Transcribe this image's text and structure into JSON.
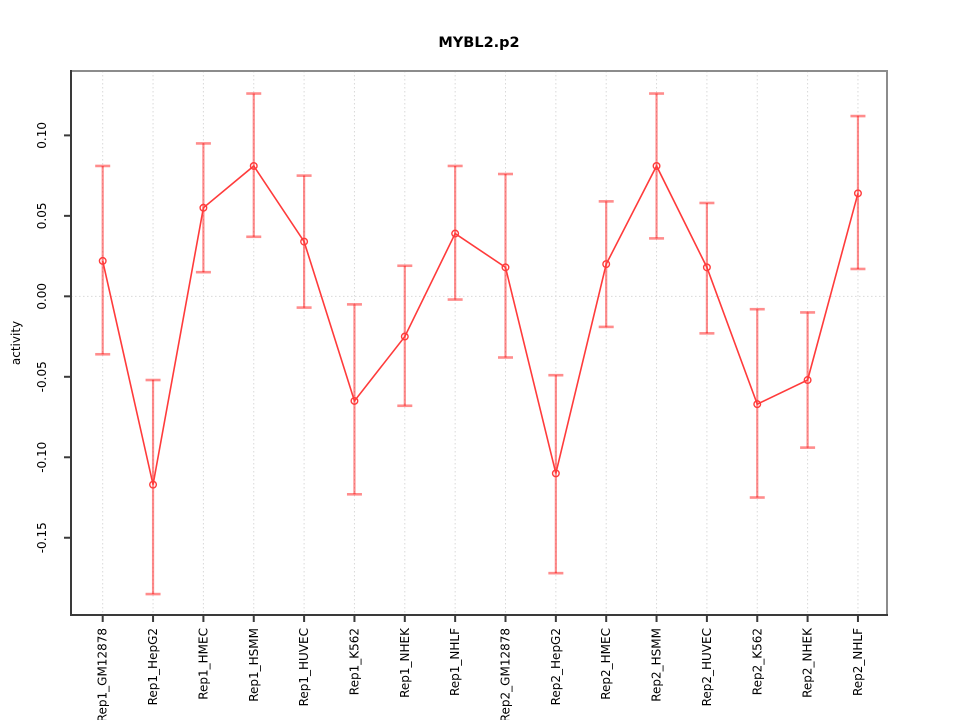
{
  "window": {
    "title": "MYBL2.p2"
  },
  "chart_data": {
    "type": "line",
    "title": "MYBL2.p2",
    "xlabel": "",
    "ylabel": "activity",
    "legend": "none",
    "grid": "vertical dotted gridline at each category; dotted horizontal line at y=0",
    "point_style": "open-circle",
    "error_bars": true,
    "categories": [
      "Rep1_GM12878",
      "Rep1_HepG2",
      "Rep1_HMEC",
      "Rep1_HSMM",
      "Rep1_HUVEC",
      "Rep1_K562",
      "Rep1_NHEK",
      "Rep1_NHLF",
      "Rep2_GM12878",
      "Rep2_HepG2",
      "Rep2_HMEC",
      "Rep2_HSMM",
      "Rep2_HUVEC",
      "Rep2_K562",
      "Rep2_NHEK",
      "Rep2_NHLF"
    ],
    "series": [
      {
        "name": "activity",
        "values": [
          0.022,
          -0.117,
          0.055,
          0.081,
          0.034,
          -0.065,
          -0.025,
          0.039,
          0.018,
          -0.11,
          0.02,
          0.081,
          0.018,
          -0.067,
          -0.052,
          0.064
        ],
        "lower": [
          -0.036,
          -0.185,
          0.015,
          0.037,
          -0.007,
          -0.123,
          -0.068,
          -0.002,
          -0.038,
          -0.172,
          -0.019,
          0.036,
          -0.023,
          -0.125,
          -0.094,
          0.017
        ],
        "upper": [
          0.081,
          -0.052,
          0.095,
          0.126,
          0.075,
          -0.005,
          0.019,
          0.081,
          0.076,
          -0.049,
          0.059,
          0.126,
          0.058,
          -0.008,
          -0.01,
          0.112
        ]
      }
    ],
    "yticks": [
      0.1,
      0.05,
      0.0,
      -0.05,
      -0.1,
      -0.15
    ],
    "ytick_labels": [
      "0.10",
      "0.05",
      "0.00",
      "-0.05",
      "-0.10",
      "-0.15"
    ],
    "ylim": [
      -0.198,
      0.14
    ],
    "zero_line": 0,
    "colors": {
      "line": "#ff3b3b",
      "point": "#ff3b3b",
      "error_bar": "rgba(255,0,0,0.45)",
      "grid": "#d9d9d9",
      "box": "#8c8c8c",
      "axis": "#3a3a3a",
      "text": "#000000",
      "background": "#ffffff"
    }
  }
}
